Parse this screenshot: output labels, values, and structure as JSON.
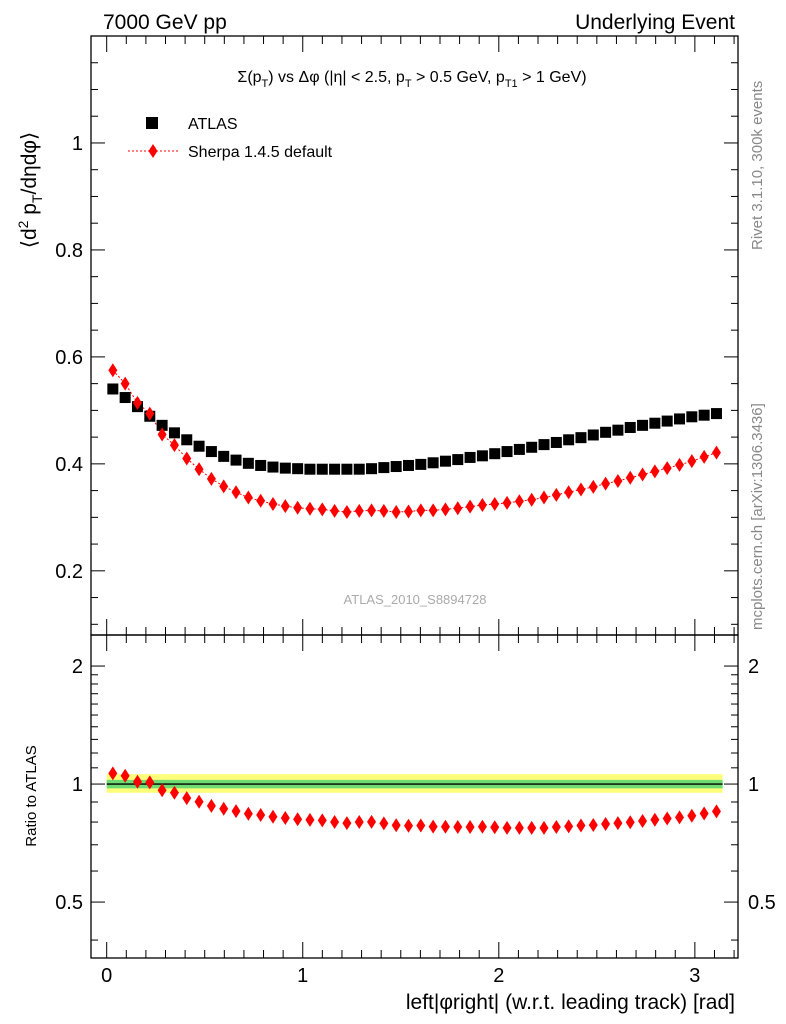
{
  "header": {
    "left": "7000 GeV pp",
    "right": "Underlying Event"
  },
  "side_labels": {
    "rivet": "Rivet 3.1.10,  300k events",
    "mcplots": "mcplots.cern.ch [arXiv:1306.3436]"
  },
  "analysis_id": "ATLAS_2010_S8894728",
  "colors": {
    "data": "#000000",
    "mc": "#ff0000",
    "band_inner": "#6fdc73",
    "band_outer": "#ffff7a"
  },
  "chart_data": [
    {
      "type": "scatter",
      "title": "Σ(p_T) vs Δφ (|η| < 2.5, p_T > 0.5 GeV, p_T1 > 1 GeV)",
      "ylabel": "⟨d² p_T/dηdφ⟩",
      "xlim": [
        -0.08,
        3.22
      ],
      "ylim": [
        0.08,
        1.2
      ],
      "yticks": [
        0.2,
        0.4,
        0.6,
        0.8,
        1
      ],
      "ytick_labels": [
        "0.2",
        "0.4",
        "0.6",
        "0.8",
        "1"
      ],
      "legend_position": "top-left",
      "x": [
        0.0314,
        0.0942,
        0.1571,
        0.2199,
        0.2827,
        0.3456,
        0.4084,
        0.4712,
        0.5341,
        0.5969,
        0.6597,
        0.7226,
        0.7854,
        0.8482,
        0.9111,
        0.9739,
        1.0367,
        1.0996,
        1.1624,
        1.2252,
        1.2881,
        1.3509,
        1.4137,
        1.4765,
        1.5394,
        1.6022,
        1.665,
        1.7279,
        1.7907,
        1.8535,
        1.9164,
        1.9792,
        2.042,
        2.1049,
        2.1677,
        2.2305,
        2.2934,
        2.3562,
        2.419,
        2.4819,
        2.5447,
        2.6075,
        2.6704,
        2.7332,
        2.796,
        2.8588,
        2.9217,
        2.9845,
        3.0473,
        3.1102
      ],
      "series": [
        {
          "name": "ATLAS",
          "marker": "square",
          "values": [
            0.54,
            0.524,
            0.507,
            0.489,
            0.472,
            0.458,
            0.445,
            0.433,
            0.423,
            0.414,
            0.407,
            0.401,
            0.397,
            0.394,
            0.392,
            0.391,
            0.39,
            0.39,
            0.39,
            0.39,
            0.39,
            0.391,
            0.393,
            0.395,
            0.397,
            0.399,
            0.402,
            0.405,
            0.408,
            0.412,
            0.415,
            0.419,
            0.423,
            0.427,
            0.431,
            0.436,
            0.44,
            0.445,
            0.449,
            0.454,
            0.459,
            0.463,
            0.468,
            0.472,
            0.476,
            0.48,
            0.484,
            0.488,
            0.491,
            0.494
          ]
        },
        {
          "name": "Sherpa 1.4.5 default",
          "marker": "diamond",
          "values": [
            0.575,
            0.55,
            0.514,
            0.494,
            0.455,
            0.435,
            0.41,
            0.39,
            0.372,
            0.358,
            0.347,
            0.337,
            0.331,
            0.325,
            0.321,
            0.318,
            0.316,
            0.315,
            0.312,
            0.31,
            0.312,
            0.313,
            0.312,
            0.31,
            0.311,
            0.313,
            0.313,
            0.315,
            0.317,
            0.32,
            0.323,
            0.325,
            0.327,
            0.33,
            0.333,
            0.337,
            0.342,
            0.347,
            0.352,
            0.357,
            0.363,
            0.368,
            0.374,
            0.38,
            0.386,
            0.392,
            0.398,
            0.405,
            0.413,
            0.421
          ]
        }
      ]
    },
    {
      "type": "scatter",
      "ylabel": "Ratio to ATLAS",
      "xlabel": "left|φright| (w.r.t. leading track) [rad]",
      "xlim": [
        -0.08,
        3.22
      ],
      "ylim": [
        0.36,
        2.4
      ],
      "log_y": true,
      "xticks": [
        0,
        1,
        2,
        3
      ],
      "xtick_labels": [
        "0",
        "1",
        "2",
        "3"
      ],
      "yticks": [
        0.5,
        1,
        2
      ],
      "ytick_labels": [
        "0.5",
        "1",
        "2"
      ],
      "reference_line": 1,
      "band_inner": [
        0.975,
        1.025
      ],
      "band_outer": [
        0.95,
        1.06
      ],
      "series": [
        {
          "name": "Sherpa 1.4.5 default",
          "marker": "diamond",
          "values": [
            1.065,
            1.05,
            1.014,
            1.01,
            0.964,
            0.95,
            0.921,
            0.901,
            0.88,
            0.865,
            0.853,
            0.84,
            0.834,
            0.825,
            0.819,
            0.813,
            0.81,
            0.808,
            0.8,
            0.795,
            0.8,
            0.801,
            0.794,
            0.785,
            0.783,
            0.784,
            0.779,
            0.778,
            0.777,
            0.777,
            0.778,
            0.776,
            0.773,
            0.773,
            0.773,
            0.773,
            0.777,
            0.78,
            0.784,
            0.786,
            0.791,
            0.795,
            0.799,
            0.805,
            0.811,
            0.817,
            0.822,
            0.83,
            0.841,
            0.852
          ]
        }
      ]
    }
  ]
}
